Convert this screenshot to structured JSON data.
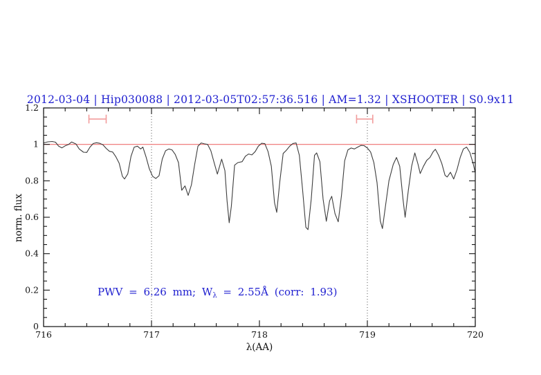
{
  "colors": {
    "title_blue": "#2020d0",
    "annotation_blue": "#2020d0",
    "reference_red": "#ee6f6f",
    "marker_pink": "#f29c9c",
    "spectrum_gray": "#3c3c3c",
    "dotted_gray": "#555555",
    "axis_black": "#111111"
  },
  "annotation": {
    "prefix": "PWV = 6.26 mm; W",
    "subscript": "λ",
    "suffix": " = 2.55Å (corr: 1.93)"
  },
  "chart_data": {
    "type": "line",
    "title": "2012-03-04 | Hip030088 | 2012-03-05T02:57:36.516 | AM=1.32 | XSHOOTER | S0.9x11",
    "xlabel": "λ(AA)",
    "ylabel": "norm. flux",
    "xlim": [
      716,
      720
    ],
    "ylim": [
      0,
      1.2
    ],
    "x_ticks": [
      716,
      717,
      718,
      719,
      720
    ],
    "x_tick_labels": [
      "716",
      "717",
      "718",
      "719",
      "720"
    ],
    "x_minor_step": 0.2,
    "y_ticks": [
      0,
      0.2,
      0.4,
      0.6,
      0.8,
      1,
      1.2
    ],
    "y_tick_labels": [
      "0",
      "0.2",
      "0.4",
      "0.6",
      "0.8",
      "1",
      "1.2"
    ],
    "y_minor_step": 0.05,
    "grid": "off",
    "legend": "none",
    "reference_line": {
      "y": 1.0
    },
    "vertical_dotted_lines": [
      717,
      719
    ],
    "interval_markers": [
      {
        "x1": 716.42,
        "x2": 716.58,
        "y": 1.139,
        "cap_half_height": 0.024
      },
      {
        "x1": 718.9,
        "x2": 719.05,
        "y": 1.139,
        "cap_half_height": 0.024
      }
    ],
    "series": [
      {
        "name": "normalized telluric spectrum",
        "points": [
          [
            716.0,
            1.008
          ],
          [
            716.04,
            1.014
          ],
          [
            716.08,
            1.016
          ],
          [
            716.11,
            1.012
          ],
          [
            716.14,
            0.99
          ],
          [
            716.17,
            0.981
          ],
          [
            716.2,
            0.992
          ],
          [
            716.23,
            0.999
          ],
          [
            716.26,
            1.013
          ],
          [
            716.3,
            1.002
          ],
          [
            716.33,
            0.975
          ],
          [
            716.37,
            0.957
          ],
          [
            716.4,
            0.956
          ],
          [
            716.43,
            0.985
          ],
          [
            716.46,
            1.005
          ],
          [
            716.49,
            1.009
          ],
          [
            716.52,
            1.006
          ],
          [
            716.55,
            0.998
          ],
          [
            716.58,
            0.978
          ],
          [
            716.61,
            0.962
          ],
          [
            716.64,
            0.958
          ],
          [
            716.67,
            0.932
          ],
          [
            716.7,
            0.897
          ],
          [
            716.73,
            0.825
          ],
          [
            716.75,
            0.81
          ],
          [
            716.78,
            0.838
          ],
          [
            716.81,
            0.935
          ],
          [
            716.84,
            0.985
          ],
          [
            716.87,
            0.99
          ],
          [
            716.9,
            0.975
          ],
          [
            716.92,
            0.985
          ],
          [
            716.95,
            0.93
          ],
          [
            716.98,
            0.865
          ],
          [
            717.01,
            0.825
          ],
          [
            717.04,
            0.813
          ],
          [
            717.07,
            0.828
          ],
          [
            717.1,
            0.92
          ],
          [
            717.13,
            0.965
          ],
          [
            717.16,
            0.975
          ],
          [
            717.19,
            0.97
          ],
          [
            717.22,
            0.945
          ],
          [
            717.25,
            0.9
          ],
          [
            717.28,
            0.748
          ],
          [
            717.31,
            0.772
          ],
          [
            717.34,
            0.72
          ],
          [
            717.37,
            0.778
          ],
          [
            717.4,
            0.89
          ],
          [
            717.43,
            0.99
          ],
          [
            717.46,
            1.008
          ],
          [
            717.49,
            1.003
          ],
          [
            717.52,
            1.0
          ],
          [
            717.55,
            0.965
          ],
          [
            717.58,
            0.9
          ],
          [
            717.61,
            0.837
          ],
          [
            717.65,
            0.919
          ],
          [
            717.68,
            0.856
          ],
          [
            717.7,
            0.69
          ],
          [
            717.72,
            0.57
          ],
          [
            717.74,
            0.66
          ],
          [
            717.77,
            0.886
          ],
          [
            717.8,
            0.9
          ],
          [
            717.84,
            0.905
          ],
          [
            717.87,
            0.935
          ],
          [
            717.9,
            0.947
          ],
          [
            717.93,
            0.942
          ],
          [
            717.96,
            0.96
          ],
          [
            717.99,
            0.99
          ],
          [
            718.02,
            1.006
          ],
          [
            718.05,
            1.004
          ],
          [
            718.08,
            0.96
          ],
          [
            718.11,
            0.88
          ],
          [
            718.14,
            0.68
          ],
          [
            718.16,
            0.627
          ],
          [
            718.19,
            0.8
          ],
          [
            718.22,
            0.95
          ],
          [
            718.25,
            0.968
          ],
          [
            718.28,
            0.99
          ],
          [
            718.31,
            1.005
          ],
          [
            718.34,
            1.008
          ],
          [
            718.37,
            0.94
          ],
          [
            718.4,
            0.75
          ],
          [
            718.43,
            0.545
          ],
          [
            718.45,
            0.532
          ],
          [
            718.48,
            0.7
          ],
          [
            718.51,
            0.94
          ],
          [
            718.53,
            0.953
          ],
          [
            718.56,
            0.905
          ],
          [
            718.59,
            0.7
          ],
          [
            718.62,
            0.578
          ],
          [
            718.65,
            0.69
          ],
          [
            718.67,
            0.715
          ],
          [
            718.7,
            0.62
          ],
          [
            718.73,
            0.575
          ],
          [
            718.76,
            0.72
          ],
          [
            718.79,
            0.91
          ],
          [
            718.82,
            0.97
          ],
          [
            718.85,
            0.98
          ],
          [
            718.88,
            0.975
          ],
          [
            718.91,
            0.985
          ],
          [
            718.94,
            0.994
          ],
          [
            718.97,
            0.993
          ],
          [
            719.0,
            0.98
          ],
          [
            719.03,
            0.958
          ],
          [
            719.06,
            0.9
          ],
          [
            719.09,
            0.79
          ],
          [
            719.12,
            0.58
          ],
          [
            719.14,
            0.538
          ],
          [
            719.17,
            0.67
          ],
          [
            719.2,
            0.8
          ],
          [
            719.24,
            0.89
          ],
          [
            719.27,
            0.928
          ],
          [
            719.3,
            0.88
          ],
          [
            719.33,
            0.7
          ],
          [
            719.35,
            0.6
          ],
          [
            719.38,
            0.75
          ],
          [
            719.41,
            0.88
          ],
          [
            719.44,
            0.953
          ],
          [
            719.47,
            0.89
          ],
          [
            719.49,
            0.84
          ],
          [
            719.52,
            0.88
          ],
          [
            719.55,
            0.912
          ],
          [
            719.58,
            0.928
          ],
          [
            719.61,
            0.96
          ],
          [
            719.63,
            0.973
          ],
          [
            719.66,
            0.94
          ],
          [
            719.69,
            0.895
          ],
          [
            719.72,
            0.83
          ],
          [
            719.74,
            0.821
          ],
          [
            719.77,
            0.847
          ],
          [
            719.8,
            0.81
          ],
          [
            719.83,
            0.86
          ],
          [
            719.86,
            0.928
          ],
          [
            719.89,
            0.975
          ],
          [
            719.92,
            0.985
          ],
          [
            719.95,
            0.955
          ],
          [
            719.98,
            0.895
          ],
          [
            720.0,
            0.845
          ]
        ]
      }
    ]
  }
}
